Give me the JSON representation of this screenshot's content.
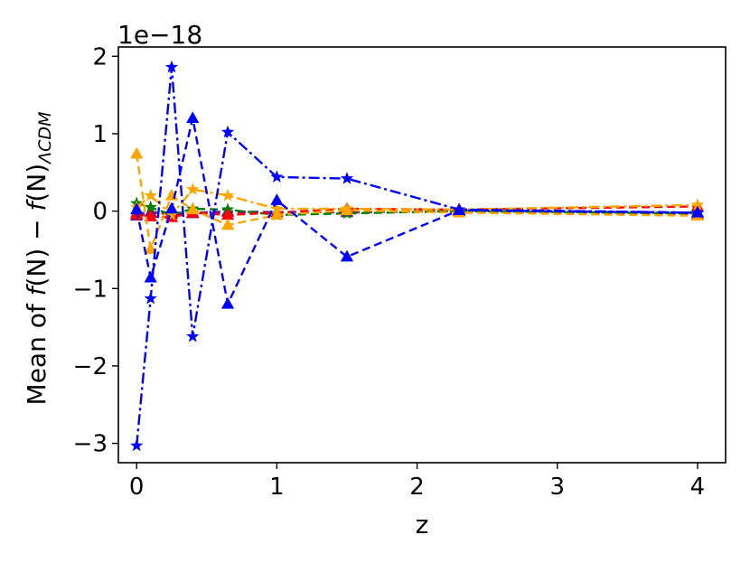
{
  "chart_data": {
    "type": "line",
    "offset_text": "1e−18",
    "xlabel": "z",
    "ylabel_prefix": "Mean of ",
    "ylabel_fN": "f",
    "ylabel_mid": "(N) − ",
    "ylabel_fN2": "f",
    "ylabel_mid2": "(N)",
    "ylabel_sub": "ΛCDM",
    "xlim": [
      -0.13,
      4.2
    ],
    "ylim": [
      -3.25,
      2.12
    ],
    "x_ticks": [
      0,
      1,
      2,
      3,
      4
    ],
    "x_tick_labels": [
      "0",
      "1",
      "2",
      "3",
      "4"
    ],
    "y_ticks": [
      -3,
      -2,
      -1,
      0,
      1,
      2
    ],
    "y_tick_labels": [
      "−3",
      "−2",
      "−1",
      "0",
      "1",
      "2"
    ],
    "x": [
      0,
      0.1,
      0.25,
      0.4,
      0.65,
      1.0,
      1.5,
      2.3,
      4.0
    ],
    "series": [
      {
        "color": "#0000ff",
        "marker": "star",
        "dash": "dashdot",
        "values": [
          -3.03,
          -1.13,
          1.86,
          -1.62,
          1.02,
          0.44,
          0.42,
          0.02,
          -0.02
        ]
      },
      {
        "color": "#0000ff",
        "marker": "triangle",
        "dash": "dashed",
        "values": [
          0.02,
          -0.86,
          0.03,
          1.2,
          -1.2,
          0.14,
          -0.59,
          0.01,
          -0.02
        ]
      },
      {
        "color": "#ffa500",
        "marker": "triangle",
        "dash": "dashed",
        "values": [
          0.74,
          -0.49,
          0.2,
          0.02,
          -0.18,
          -0.05,
          0.01,
          -0.02,
          -0.06
        ]
      },
      {
        "color": "#ffa500",
        "marker": "star",
        "dash": "dashdot",
        "values": [
          0.05,
          0.2,
          -0.05,
          0.28,
          0.2,
          0.03,
          0.03,
          0.02,
          0.08
        ]
      },
      {
        "color": "#ff0000",
        "marker": "triangle",
        "dash": "dashed",
        "values": [
          -0.04,
          -0.07,
          -0.08,
          -0.02,
          -0.05,
          -0.02,
          0.03,
          0.02,
          0.06
        ]
      },
      {
        "color": "#008000",
        "marker": "star",
        "dash": "dashed",
        "values": [
          0.1,
          0.05,
          -0.05,
          0.03,
          0.02,
          -0.05,
          -0.03,
          0.0,
          -0.03
        ]
      },
      {
        "color": "#800080",
        "marker": "triangle",
        "dash": "dashed",
        "values": [
          -0.06,
          -0.02,
          -0.04,
          -0.03,
          -0.01,
          -0.02,
          -0.01,
          0.0,
          -0.04
        ]
      },
      {
        "color": "#808080",
        "marker": "triangle",
        "dash": "dashed",
        "values": [
          -0.02,
          -0.01,
          -0.02,
          -0.02,
          0.0,
          -0.01,
          -0.02,
          0.0,
          -0.02
        ]
      }
    ]
  }
}
